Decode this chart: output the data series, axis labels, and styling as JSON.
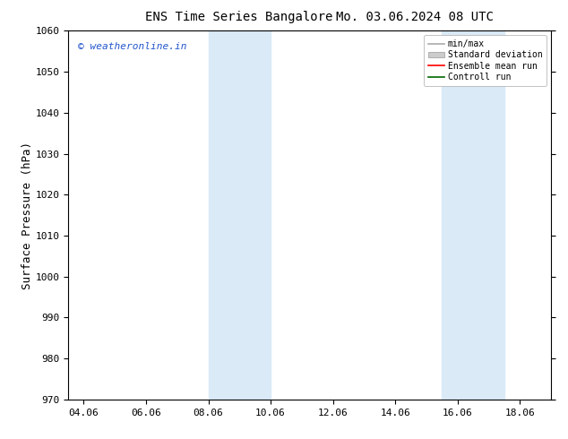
{
  "title_left": "ENS Time Series Bangalore",
  "title_right": "Mo. 03.06.2024 08 UTC",
  "ylabel": "Surface Pressure (hPa)",
  "ylim": [
    970,
    1060
  ],
  "yticks": [
    970,
    980,
    990,
    1000,
    1010,
    1020,
    1030,
    1040,
    1050,
    1060
  ],
  "xlim_start": 3.5,
  "xlim_end": 19.0,
  "xtick_labels": [
    "04.06",
    "06.06",
    "08.06",
    "10.06",
    "12.06",
    "14.06",
    "16.06",
    "18.06"
  ],
  "xtick_positions": [
    4.0,
    6.0,
    8.0,
    10.0,
    12.0,
    14.0,
    16.0,
    18.0
  ],
  "shaded_bands": [
    {
      "x_start": 8.0,
      "x_end": 10.0
    },
    {
      "x_start": 15.5,
      "x_end": 17.5
    }
  ],
  "shaded_color": "#daeaf7",
  "background_color": "#ffffff",
  "watermark_text": "© weatheronline.in",
  "watermark_color": "#2255cc",
  "legend_items": [
    {
      "label": "min/max",
      "color": "#aaaaaa",
      "type": "line"
    },
    {
      "label": "Standard deviation",
      "color": "#cccccc",
      "type": "patch"
    },
    {
      "label": "Ensemble mean run",
      "color": "#ff0000",
      "type": "line"
    },
    {
      "label": "Controll run",
      "color": "#006600",
      "type": "line"
    }
  ],
  "title_fontsize": 10,
  "tick_fontsize": 8,
  "ylabel_fontsize": 9,
  "watermark_fontsize": 8,
  "legend_fontsize": 7,
  "figsize": [
    6.34,
    4.9
  ],
  "dpi": 100
}
